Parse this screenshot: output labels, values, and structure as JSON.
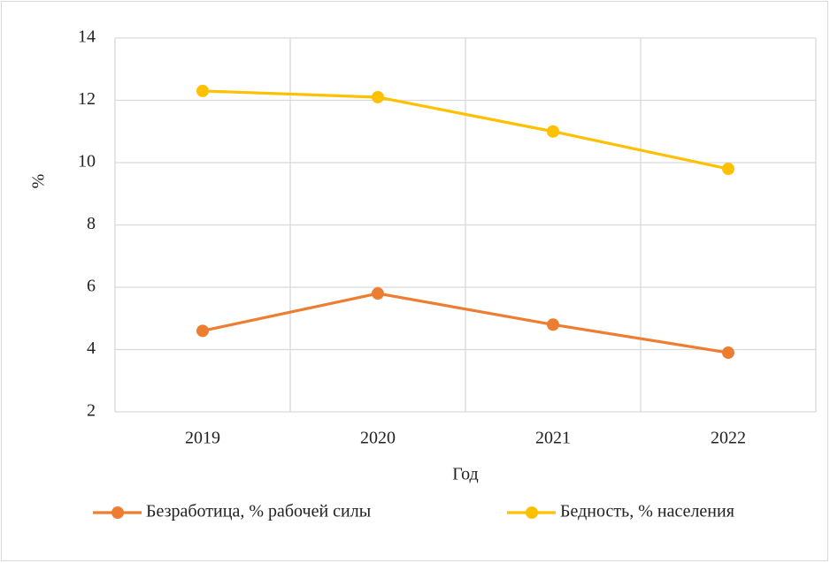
{
  "chart_data": {
    "type": "line",
    "categories": [
      "2019",
      "2020",
      "2021",
      "2022"
    ],
    "series": [
      {
        "name": "Безработица, % рабочей силы",
        "color": "#ed7d31",
        "values": [
          4.6,
          5.8,
          4.8,
          3.9
        ]
      },
      {
        "name": "Бедность, % населения",
        "color": "#ffc000",
        "values": [
          12.3,
          12.1,
          11.0,
          9.8
        ]
      }
    ],
    "x_label": "Год",
    "y_label": "%",
    "ylim": [
      2,
      14
    ],
    "yticks": [
      2,
      4,
      6,
      8,
      10,
      12,
      14
    ],
    "grid": true,
    "legend": "bottom"
  }
}
